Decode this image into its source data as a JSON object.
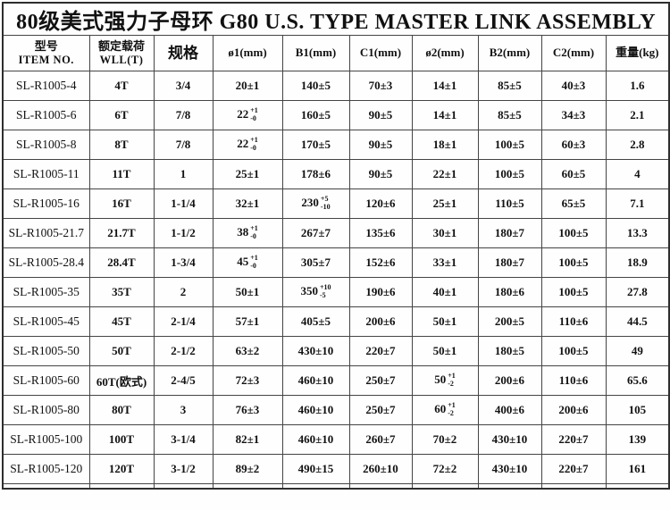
{
  "page": {
    "background": "#ffffff",
    "border_color": "#2e2e2e",
    "text_color": "#111111"
  },
  "title": "80级美式强力子母环 G80 U.S. TYPE MASTER LINK ASSEMBLY",
  "table": {
    "columns": [
      {
        "line1": "型号",
        "line2": "ITEM NO."
      },
      {
        "line1": "额定载荷",
        "line2": "WLL(T)"
      },
      {
        "line1": "规格"
      },
      {
        "line1": "ø1(mm)"
      },
      {
        "line1": "B1(mm)"
      },
      {
        "line1": "C1(mm)"
      },
      {
        "line1": "ø2(mm)"
      },
      {
        "line1": "B2(mm)"
      },
      {
        "line1": "C2(mm)"
      },
      {
        "line1": "重量(kg)"
      }
    ],
    "rows": [
      [
        "SL-R1005-4",
        "4T",
        "3/4",
        "20±1",
        "140±5",
        "70±3",
        "14±1",
        "85±5",
        "40±3",
        "1.6"
      ],
      [
        "SL-R1005-6",
        "6T",
        "7/8",
        {
          "b": "22",
          "p": "+1",
          "m": "-0"
        },
        "160±5",
        "90±5",
        "14±1",
        "85±5",
        "34±3",
        "2.1"
      ],
      [
        "SL-R1005-8",
        "8T",
        "7/8",
        {
          "b": "22",
          "p": "+1",
          "m": "-0"
        },
        "170±5",
        "90±5",
        "18±1",
        "100±5",
        "60±3",
        "2.8"
      ],
      [
        "SL-R1005-11",
        "11T",
        "1",
        "25±1",
        "178±6",
        "90±5",
        "22±1",
        "100±5",
        "60±5",
        "4"
      ],
      [
        "SL-R1005-16",
        "16T",
        "1-1/4",
        "32±1",
        {
          "b": "230",
          "p": "+5",
          "m": "-10"
        },
        "120±6",
        "25±1",
        "110±5",
        "65±5",
        "7.1"
      ],
      [
        "SL-R1005-21.7",
        "21.7T",
        "1-1/2",
        {
          "b": "38",
          "p": "+1",
          "m": "-0"
        },
        "267±7",
        "135±6",
        "30±1",
        "180±7",
        "100±5",
        "13.3"
      ],
      [
        "SL-R1005-28.4",
        "28.4T",
        "1-3/4",
        {
          "b": "45",
          "p": "+1",
          "m": "-0"
        },
        "305±7",
        "152±6",
        "33±1",
        "180±7",
        "100±5",
        "18.9"
      ],
      [
        "SL-R1005-35",
        "35T",
        "2",
        "50±1",
        {
          "b": "350",
          "p": "+10",
          "m": "-5"
        },
        "190±6",
        "40±1",
        "180±6",
        "100±5",
        "27.8"
      ],
      [
        "SL-R1005-45",
        "45T",
        "2-1/4",
        "57±1",
        "405±5",
        "200±6",
        "50±1",
        "200±5",
        "110±6",
        "44.5"
      ],
      [
        "SL-R1005-50",
        "50T",
        "2-1/2",
        "63±2",
        "430±10",
        "220±7",
        "50±1",
        "180±5",
        "100±5",
        "49"
      ],
      [
        "SL-R1005-60",
        "60T(欧式)",
        "2-4/5",
        "72±3",
        "460±10",
        "250±7",
        {
          "b": "50",
          "p": "+1",
          "m": "-2"
        },
        "200±6",
        "110±6",
        "65.6"
      ],
      [
        "SL-R1005-80",
        "80T",
        "3",
        "76±3",
        "460±10",
        "250±7",
        {
          "b": "60",
          "p": "+1",
          "m": "-2"
        },
        "400±6",
        "200±6",
        "105"
      ],
      [
        "SL-R1005-100",
        "100T",
        "3-1/4",
        "82±1",
        "460±10",
        "260±7",
        "70±2",
        "430±10",
        "220±7",
        "139"
      ],
      [
        "SL-R1005-120",
        "120T",
        "3-1/2",
        "89±2",
        "490±15",
        "260±10",
        "72±2",
        "430±10",
        "220±7",
        "161"
      ]
    ]
  }
}
